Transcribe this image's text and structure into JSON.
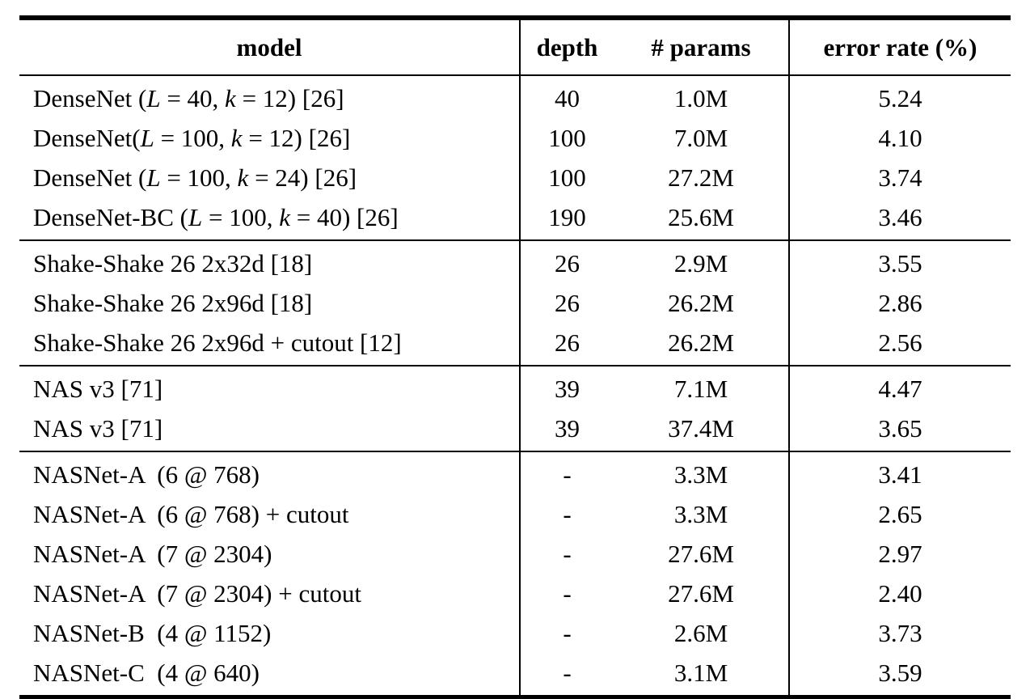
{
  "colors": {
    "background": "#ffffff",
    "text": "#000000",
    "rule": "#000000"
  },
  "table": {
    "headers": {
      "model": "model",
      "depth": "depth",
      "params": "# params",
      "error": "error rate (%)"
    },
    "groups": [
      {
        "rows": [
          {
            "model": "DenseNet ($L$ = 40, $k$ = 12) [26]",
            "depth": "40",
            "params": "1.0M",
            "error": "5.24"
          },
          {
            "model": "DenseNet($L$ = 100, $k$ = 12) [26]",
            "depth": "100",
            "params": "7.0M",
            "error": "4.10"
          },
          {
            "model": "DenseNet ($L$ = 100, $k$ = 24) [26]",
            "depth": "100",
            "params": "27.2M",
            "error": "3.74"
          },
          {
            "model": "DenseNet-BC ($L$ = 100, $k$ = 40) [26]",
            "depth": "190",
            "params": "25.6M",
            "error": "3.46"
          }
        ]
      },
      {
        "rows": [
          {
            "model": "Shake-Shake 26 2x32d [18]",
            "depth": "26",
            "params": "2.9M",
            "error": "3.55"
          },
          {
            "model": "Shake-Shake 26 2x96d [18]",
            "depth": "26",
            "params": "26.2M",
            "error": "2.86"
          },
          {
            "model": "Shake-Shake 26 2x96d + cutout [12]",
            "depth": "26",
            "params": "26.2M",
            "error": "2.56"
          }
        ]
      },
      {
        "rows": [
          {
            "model": "NAS v3 [71]",
            "depth": "39",
            "params": "7.1M",
            "error": "4.47"
          },
          {
            "model": "NAS v3 [71]",
            "depth": "39",
            "params": "37.4M",
            "error": "3.65"
          }
        ]
      },
      {
        "rows": [
          {
            "model": "NASNet-A  (6 @ 768)",
            "depth": "-",
            "params": "3.3M",
            "error": "3.41"
          },
          {
            "model": "NASNet-A  (6 @ 768) + cutout",
            "depth": "-",
            "params": "3.3M",
            "error": "2.65"
          },
          {
            "model": "NASNet-A  (7 @ 2304)",
            "depth": "-",
            "params": "27.6M",
            "error": "2.97"
          },
          {
            "model": "NASNet-A  (7 @ 2304) + cutout",
            "depth": "-",
            "params": "27.6M",
            "error": "2.40"
          },
          {
            "model": "NASNet-B  (4 @ 1152)",
            "depth": "-",
            "params": "2.6M",
            "error": "3.73"
          },
          {
            "model": "NASNet-C  (4 @ 640)",
            "depth": "-",
            "params": "3.1M",
            "error": "3.59"
          }
        ]
      }
    ]
  }
}
